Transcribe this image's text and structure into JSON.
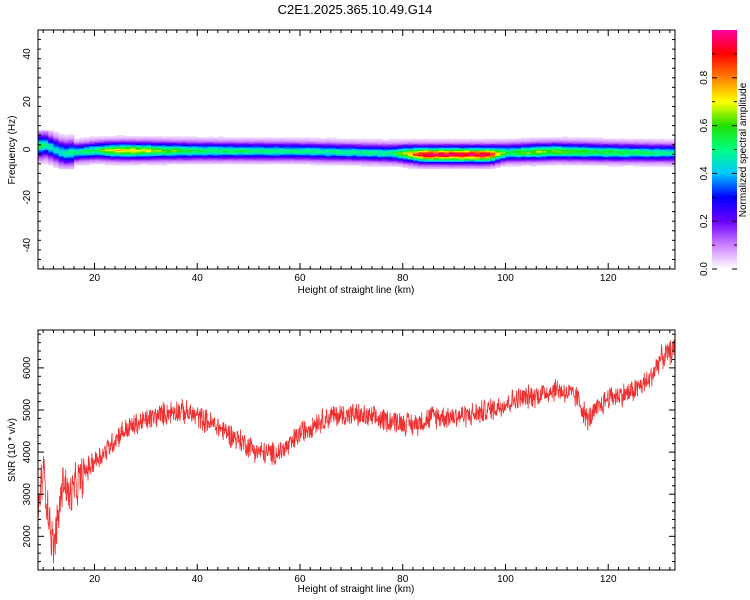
{
  "title": "C2E1.2025.365.10.49.G14",
  "colors": {
    "snr_line": "#f03030",
    "frame": "#000000",
    "background": "#ffffff"
  },
  "chart_data": [
    {
      "type": "heatmap",
      "xlabel": "Height of straight line (km)",
      "ylabel": "Frequency (Hz)",
      "xlim": [
        9,
        133
      ],
      "ylim": [
        -50,
        50
      ],
      "xticks": [
        20,
        40,
        60,
        80,
        100,
        120
      ],
      "yticks": [
        -40,
        -20,
        0,
        20,
        40
      ],
      "colorbar": {
        "label": "Normalized spectral amplitude",
        "range": [
          0,
          1
        ],
        "ticks": [
          0.0,
          0.2,
          0.4,
          0.6,
          0.8
        ],
        "tick_labels": [
          "0.0",
          "0.2",
          "0.4",
          "0.6",
          "0.8"
        ],
        "colormap": [
          "#ffffff",
          "#cc80ff",
          "#6a00ff",
          "#0000ff",
          "#00c8ff",
          "#00ff80",
          "#20e000",
          "#ffff00",
          "#ff8000",
          "#ff0000",
          "#ff00a0"
        ]
      },
      "ridge": {
        "center_hz": [
          [
            9,
            1.0
          ],
          [
            10,
            2.5
          ],
          [
            12,
            0.5
          ],
          [
            14,
            -1.5
          ],
          [
            20,
            -0.3
          ],
          [
            40,
            -0.4
          ],
          [
            60,
            -0.6
          ],
          [
            80,
            -1.5
          ],
          [
            84,
            -2.0
          ],
          [
            97,
            -2.0
          ],
          [
            100,
            -1.2
          ],
          [
            110,
            -0.6
          ],
          [
            120,
            -1.0
          ],
          [
            133,
            -1.3
          ]
        ],
        "peak_amplitude": [
          [
            9,
            0.55
          ],
          [
            12,
            0.45
          ],
          [
            20,
            0.55
          ],
          [
            25,
            0.75
          ],
          [
            40,
            0.55
          ],
          [
            60,
            0.5
          ],
          [
            78,
            0.5
          ],
          [
            84,
            0.95
          ],
          [
            97,
            0.95
          ],
          [
            100,
            0.55
          ],
          [
            106,
            0.65
          ],
          [
            115,
            0.6
          ],
          [
            133,
            0.5
          ]
        ]
      }
    },
    {
      "type": "line",
      "xlabel": "Height of straight line (km)",
      "ylabel": "SNR (10 * v/v)",
      "xlim": [
        9,
        133
      ],
      "ylim": [
        1200,
        6900
      ],
      "xticks": [
        20,
        40,
        60,
        80,
        100,
        120
      ],
      "yticks": [
        2000,
        3000,
        4000,
        5000,
        6000
      ],
      "series": [
        {
          "color": "#f03030",
          "trend_x": [
            9,
            10,
            11,
            12,
            13,
            14,
            15,
            16,
            18,
            20,
            22,
            25,
            28,
            32,
            36,
            40,
            44,
            48,
            52,
            55,
            58,
            60,
            63,
            66,
            70,
            74,
            78,
            82,
            86,
            90,
            94,
            98,
            102,
            106,
            110,
            114,
            116,
            120,
            124,
            128,
            130,
            133
          ],
          "trend_y": [
            2600,
            3600,
            2600,
            1700,
            2500,
            3400,
            2900,
            3100,
            3500,
            3800,
            4000,
            4450,
            4650,
            4850,
            5000,
            4850,
            4600,
            4300,
            4000,
            3950,
            4150,
            4450,
            4700,
            4850,
            4900,
            4800,
            4750,
            4650,
            4850,
            4850,
            4900,
            5050,
            5250,
            5350,
            5500,
            5300,
            4750,
            5300,
            5400,
            5700,
            6200,
            6450
          ],
          "noise_amplitude": 330
        }
      ]
    }
  ]
}
